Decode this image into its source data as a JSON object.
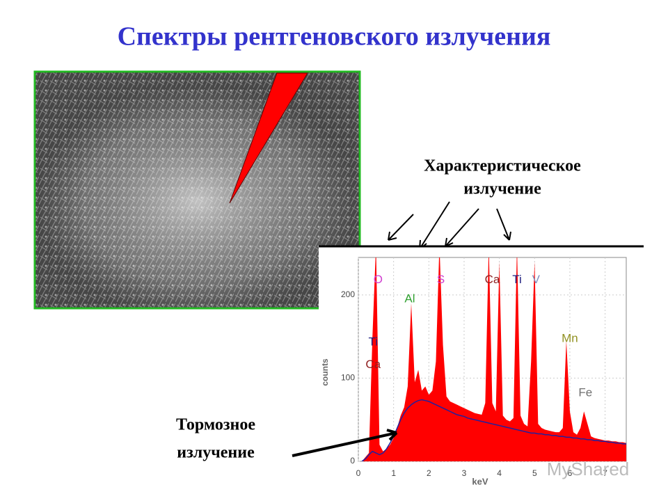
{
  "title": "Спектры рентгеновского излучения",
  "characteristic_label": [
    "Характеристическое",
    "излучение"
  ],
  "bremsstrahlung_label": [
    "Тормозное",
    "излучение"
  ],
  "watermark": "MyShared",
  "chart_data": {
    "type": "area",
    "x_label": "keV",
    "y_label": "counts",
    "x": [
      0.1,
      0.2,
      0.3,
      0.4,
      0.5,
      0.6,
      0.7,
      0.8,
      0.9,
      1.0,
      1.1,
      1.2,
      1.3,
      1.4,
      1.5,
      1.6,
      1.7,
      1.8,
      1.9,
      2.0,
      2.1,
      2.2,
      2.3,
      2.4,
      2.5,
      2.6,
      2.7,
      2.8,
      2.9,
      3.0,
      3.1,
      3.2,
      3.3,
      3.4,
      3.5,
      3.6,
      3.7,
      3.8,
      3.9,
      4.0,
      4.1,
      4.2,
      4.3,
      4.4,
      4.5,
      4.6,
      4.7,
      4.8,
      4.9,
      5.0,
      5.1,
      5.2,
      5.3,
      5.4,
      5.5,
      5.6,
      5.7,
      5.8,
      5.9,
      6.0,
      6.1,
      6.2,
      6.3,
      6.4,
      6.5,
      6.6,
      6.7,
      6.8,
      6.9,
      7.0,
      7.1,
      7.2,
      7.3,
      7.4,
      7.5,
      7.6
    ],
    "series": [
      {
        "color": "#ff0000",
        "values": [
          0,
          5,
          10,
          150,
          260,
          20,
          12,
          15,
          20,
          28,
          40,
          55,
          65,
          90,
          190,
          95,
          110,
          85,
          90,
          80,
          85,
          120,
          260,
          140,
          78,
          72,
          70,
          68,
          66,
          64,
          62,
          60,
          58,
          57,
          56,
          70,
          260,
          70,
          60,
          240,
          55,
          50,
          48,
          52,
          260,
          55,
          45,
          42,
          120,
          240,
          45,
          40,
          38,
          37,
          36,
          35,
          35,
          40,
          145,
          60,
          35,
          32,
          40,
          60,
          45,
          30,
          28,
          27,
          26,
          25,
          25,
          24,
          24,
          23,
          23,
          22
        ]
      },
      {
        "type": "line",
        "color": "#2020a0",
        "values": [
          0,
          3,
          8,
          12,
          10,
          8,
          10,
          15,
          22,
          30,
          40,
          50,
          58,
          64,
          68,
          71,
          73,
          74,
          73,
          72,
          70,
          68,
          66,
          64,
          62,
          60,
          58,
          56,
          55,
          54,
          52,
          51,
          50,
          49,
          48,
          47,
          46,
          45,
          44,
          43,
          42,
          41,
          40,
          39,
          38,
          37,
          36,
          35,
          34,
          34,
          33,
          33,
          32,
          32,
          31,
          31,
          30,
          30,
          29,
          29,
          28,
          28,
          27,
          27,
          26,
          26,
          25,
          25,
          24,
          24,
          23,
          23,
          22,
          22,
          21,
          21
        ]
      }
    ],
    "annotations": [
      {
        "text": "O",
        "x": 0.56,
        "y": 218,
        "color": "#d040d0"
      },
      {
        "text": "Al",
        "x": 1.46,
        "y": 195,
        "color": "#30a030"
      },
      {
        "text": "S",
        "x": 2.34,
        "y": 218,
        "color": "#d040d0"
      },
      {
        "text": "Ca",
        "x": 3.8,
        "y": 218,
        "color": "#902020"
      },
      {
        "text": "Ti",
        "x": 4.5,
        "y": 218,
        "color": "#202080"
      },
      {
        "text": "V",
        "x": 5.04,
        "y": 218,
        "color": "#8090c0"
      },
      {
        "text": "Mn",
        "x": 6.0,
        "y": 147,
        "color": "#909020"
      },
      {
        "text": "Fe",
        "x": 6.44,
        "y": 82,
        "color": "#707070"
      },
      {
        "text": "Ti",
        "x": 0.42,
        "y": 143,
        "color": "#202080"
      },
      {
        "text": "Ca",
        "x": 0.42,
        "y": 116,
        "color": "#902020"
      }
    ],
    "xlim": [
      0,
      7.6
    ],
    "ylim": [
      0,
      245
    ],
    "xticks": [
      0,
      1,
      2,
      3,
      4,
      5,
      6,
      7
    ],
    "yticks": [
      0,
      100,
      200
    ],
    "grid": true
  }
}
